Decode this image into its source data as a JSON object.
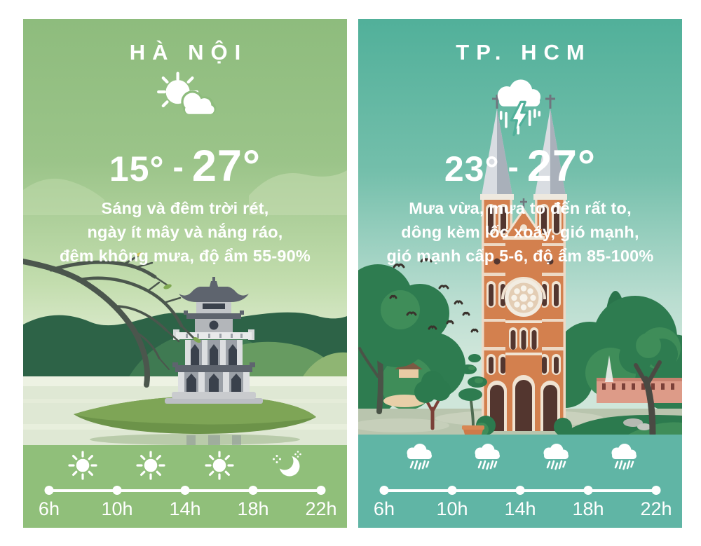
{
  "page": {
    "background": "#ffffff",
    "type": "weather-forecast-infographic"
  },
  "cards": [
    {
      "city": "HÀ NỘI",
      "weather_icon": "sun-behind-cloud",
      "temp_low": "15°",
      "temp_separator": "-",
      "temp_high": "27°",
      "description_lines": [
        "Sáng và đêm trời rét,",
        "ngày ít mây và nắng ráo,",
        "đêm không mưa, độ ẩm 55-90%"
      ],
      "illustration": "turtle-tower-hoan-kiem-lake",
      "timeline": {
        "hours": [
          "6h",
          "10h",
          "14h",
          "18h",
          "22h"
        ],
        "segment_icons": [
          "sun",
          "sun",
          "sun",
          "moon"
        ]
      },
      "theme": {
        "top": "#8ebc7d",
        "band": "#90bf7a",
        "text": "#ffffff"
      }
    },
    {
      "city": "TP. HCM",
      "weather_icon": "storm-rain",
      "temp_low": "23°",
      "temp_separator": "-",
      "temp_high": "27°",
      "description_lines": [
        "Mưa vừa, mưa to đến rất to,",
        "dông kèm lốc xoáy, gió mạnh,",
        "gió mạnh cấp 5-6, độ ẩm 85-100%"
      ],
      "illustration": "notre-dame-cathedral-saigon",
      "timeline": {
        "hours": [
          "6h",
          "10h",
          "14h",
          "18h",
          "22h"
        ],
        "segment_icons": [
          "rain",
          "rain",
          "rain",
          "rain"
        ]
      },
      "theme": {
        "top": "#51b09a",
        "band": "#60b5a5",
        "text": "#ffffff"
      }
    }
  ]
}
